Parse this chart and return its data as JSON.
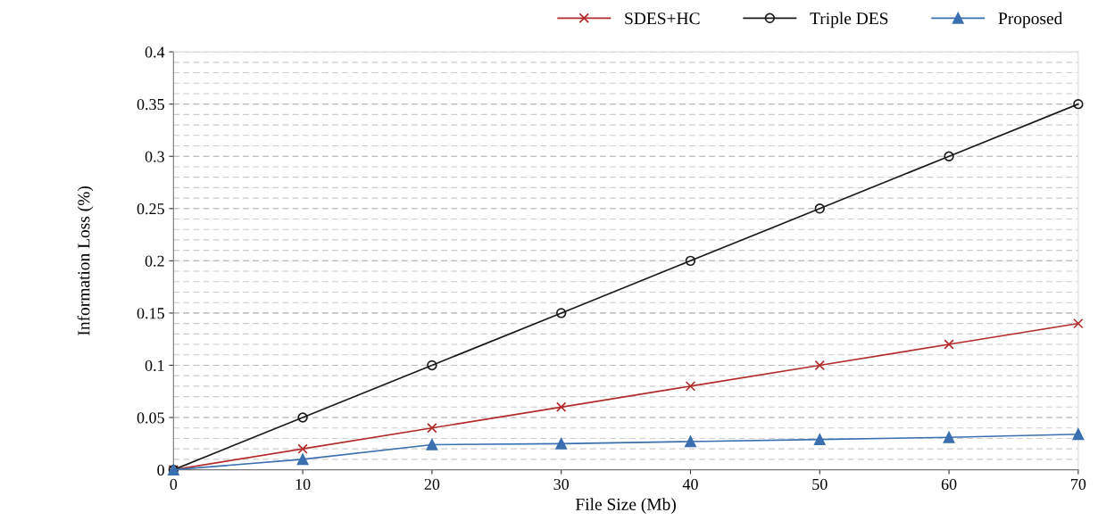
{
  "chart_data": {
    "type": "line",
    "xlabel": "File Size (Mb)",
    "ylabel": "Information Loss (%)",
    "x": [
      0,
      10,
      20,
      30,
      40,
      50,
      60,
      70
    ],
    "series": [
      {
        "name": "SDES+HC",
        "color": "#b22a2a",
        "marker": "cross",
        "values": [
          0,
          0.02,
          0.04,
          0.06,
          0.08,
          0.1,
          0.12,
          0.14
        ]
      },
      {
        "name": "Triple DES",
        "color": "#1a1a1a",
        "marker": "circle",
        "values": [
          0,
          0.05,
          0.1,
          0.15,
          0.2,
          0.25,
          0.3,
          0.35
        ]
      },
      {
        "name": "Proposed",
        "color": "#3a6fb0",
        "marker": "triangle",
        "values": [
          0,
          0.01,
          0.024,
          0.025,
          0.027,
          0.029,
          0.031,
          0.034
        ]
      }
    ],
    "xlim": [
      0,
      70
    ],
    "xticks": [
      0,
      10,
      20,
      30,
      40,
      50,
      60,
      70
    ],
    "ylim": [
      0,
      0.4
    ],
    "yticks": [
      0,
      0.05,
      0.1,
      0.15,
      0.2,
      0.25,
      0.3,
      0.35,
      0.4
    ],
    "grid": "y",
    "legend": "top right"
  }
}
